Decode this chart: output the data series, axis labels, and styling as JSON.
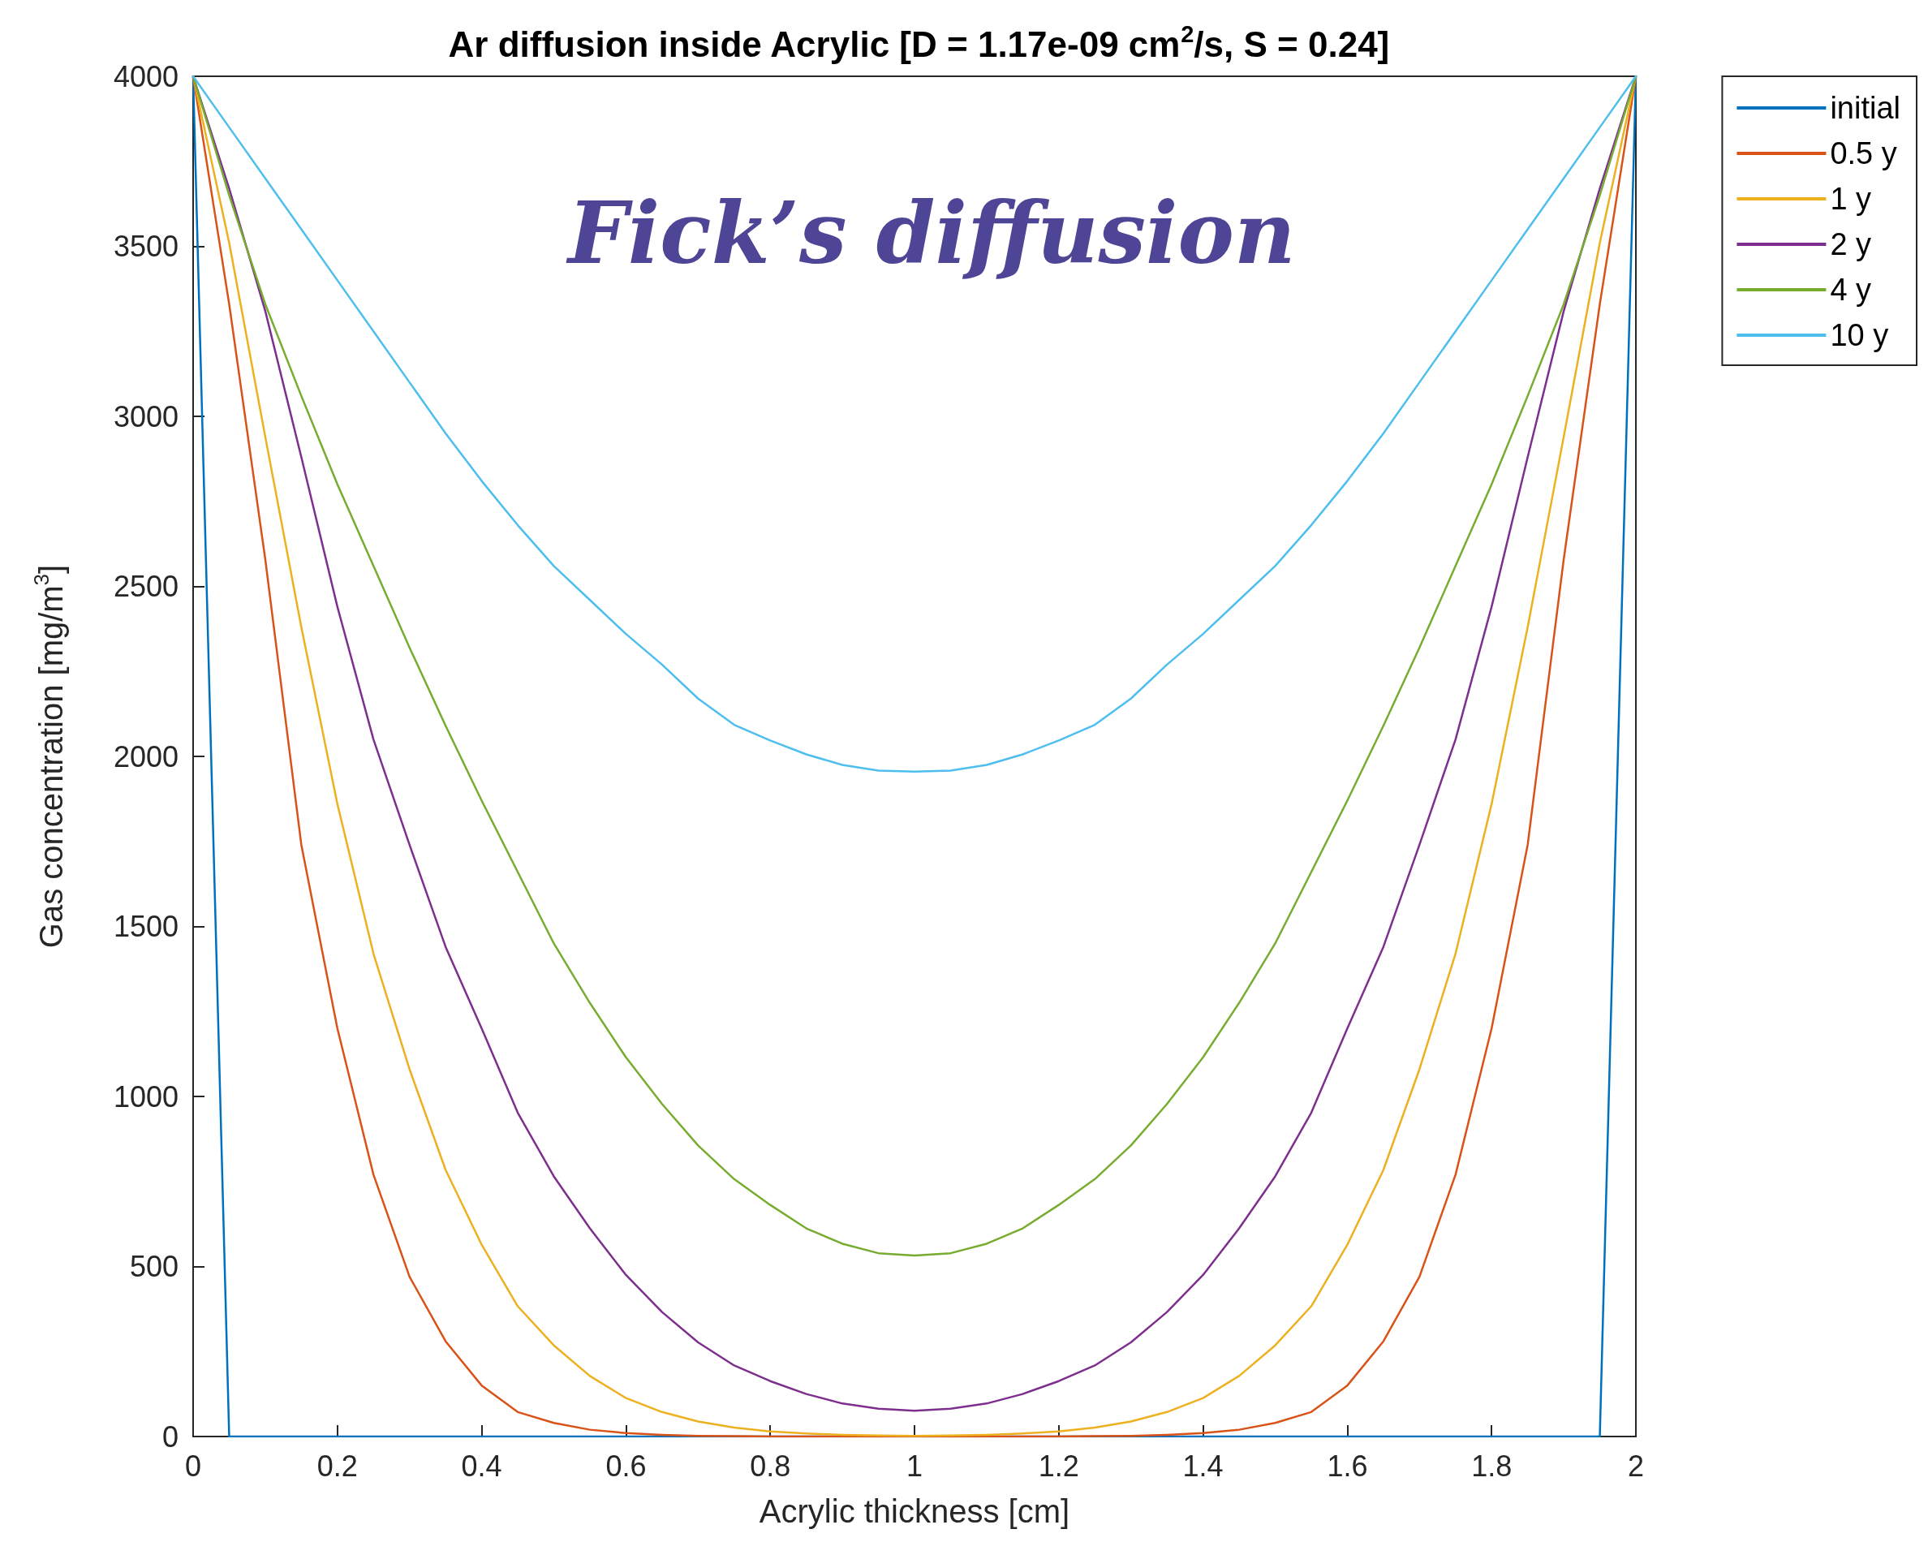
{
  "chart_data": {
    "type": "line",
    "title": "Ar diffusion inside Acrylic [D = 1.17e-09 cm$^{2}$/s, S = 0.24]",
    "xlabel": "Acrylic thickness [cm]",
    "ylabel": "Gas concentration [mg/m$^{3}$]",
    "annotations": [
      "Fick’s diffusion"
    ],
    "x": [
      0,
      0.05,
      0.1,
      0.15,
      0.2,
      0.25,
      0.3,
      0.35,
      0.4,
      0.45,
      0.5,
      0.55,
      0.6,
      0.65,
      0.7,
      0.75,
      0.8,
      0.85,
      0.9,
      0.95,
      1,
      1.05,
      1.1,
      1.15,
      1.2,
      1.25,
      1.3,
      1.35,
      1.4,
      1.45,
      1.5,
      1.55,
      1.6,
      1.65,
      1.7,
      1.75,
      1.8,
      1.85,
      1.9,
      1.95,
      2
    ],
    "xlim": [
      0,
      2
    ],
    "xticks": [
      0,
      0.2,
      0.4,
      0.6,
      0.8,
      1,
      1.2,
      1.4,
      1.6,
      1.8,
      2
    ],
    "ylim": [
      0,
      4000
    ],
    "yticks": [
      0,
      500,
      1000,
      1500,
      2000,
      2500,
      3000,
      3500,
      4000
    ],
    "grid": false,
    "legend": "top right",
    "series": [
      {
        "name": "initial",
        "color": "#0072bd",
        "values": [
          4000,
          0,
          0,
          0,
          0,
          0,
          0,
          0,
          0,
          0,
          0,
          0,
          0,
          0,
          0,
          0,
          0,
          0,
          0,
          0,
          0,
          0,
          0,
          0,
          0,
          0,
          0,
          0,
          0,
          0,
          0,
          0,
          0,
          0,
          0,
          0,
          0,
          0,
          0,
          0,
          4000
        ]
      },
      {
        "name": "0.5 y",
        "color": "#d95319",
        "values": [
          4000,
          3330,
          2580,
          1740,
          1200,
          770,
          470,
          280,
          150,
          72,
          40,
          20,
          10,
          5,
          2,
          1,
          0,
          0,
          0,
          0,
          0,
          0,
          0,
          0,
          0,
          1,
          2,
          5,
          10,
          20,
          40,
          72,
          150,
          280,
          470,
          770,
          1200,
          1740,
          2580,
          3330,
          4000
        ]
      },
      {
        "name": "1 y",
        "color": "#edb120",
        "values": [
          4000,
          3510,
          2940,
          2380,
          1860,
          1420,
          1080,
          784,
          564,
          383,
          268,
          178,
          113,
          72,
          44,
          26,
          15,
          9,
          5,
          3,
          2,
          3,
          5,
          9,
          15,
          26,
          44,
          72,
          113,
          178,
          268,
          383,
          564,
          784,
          1080,
          1420,
          1860,
          2380,
          2940,
          3510,
          4000
        ]
      },
      {
        "name": "2 y",
        "color": "#7e2f8e",
        "values": [
          4000,
          3670,
          3310,
          2880,
          2440,
          2050,
          1740,
          1440,
          1200,
          952,
          765,
          612,
          475,
          366,
          277,
          209,
          163,
          125,
          97,
          82,
          76,
          82,
          97,
          125,
          163,
          209,
          277,
          366,
          475,
          612,
          765,
          952,
          1200,
          1440,
          1740,
          2050,
          2440,
          2880,
          3310,
          3670,
          4000
        ]
      },
      {
        "name": "4 y",
        "color": "#77ac30",
        "values": [
          4000,
          3650,
          3330,
          3060,
          2800,
          2560,
          2320,
          2090,
          1870,
          1660,
          1450,
          1275,
          1115,
          978,
          856,
          757,
          681,
          612,
          567,
          539,
          532,
          539,
          567,
          612,
          681,
          757,
          856,
          978,
          1115,
          1275,
          1450,
          1660,
          1870,
          2090,
          2320,
          2560,
          2800,
          3060,
          3330,
          3650,
          4000
        ]
      },
      {
        "name": "10 y",
        "color": "#4dbeee",
        "values": [
          4000,
          3850,
          3700,
          3550,
          3400,
          3250,
          3100,
          2950,
          2810,
          2680,
          2560,
          2460,
          2360,
          2270,
          2170,
          2093,
          2047,
          2006,
          1975,
          1958,
          1955,
          1958,
          1975,
          2006,
          2047,
          2093,
          2170,
          2270,
          2360,
          2460,
          2560,
          2680,
          2810,
          2950,
          3100,
          3250,
          3400,
          3550,
          3700,
          3850,
          4000
        ]
      }
    ]
  }
}
